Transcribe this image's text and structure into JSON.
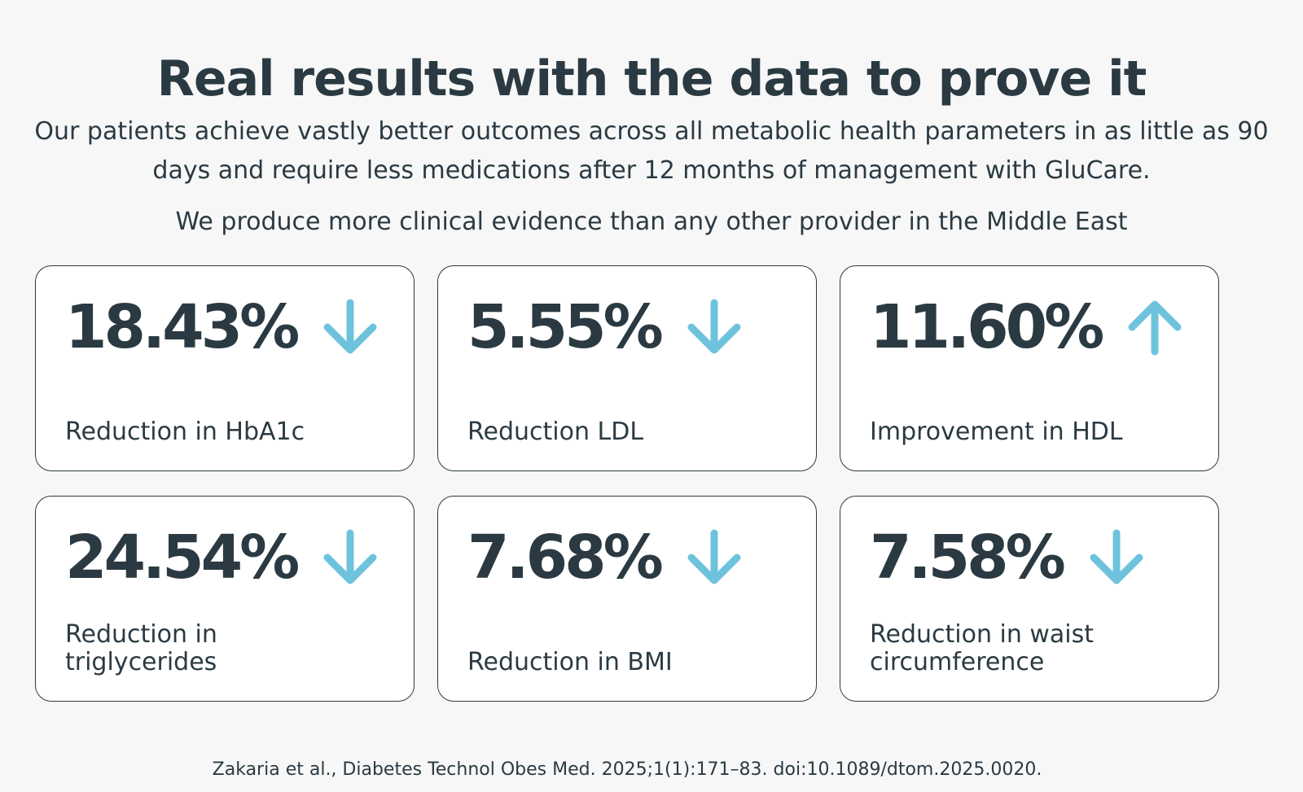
{
  "header": {
    "title": "Real results with the data to prove it",
    "subtitle": "Our patients achieve vastly better outcomes across all metabolic health parameters in as little as 90 days and require less medications after 12 months of management with GluCare.",
    "subtitle2": "We produce more clinical evidence than any other provider in the Middle East"
  },
  "stats": [
    {
      "value": "18.43%",
      "label": "Reduction in HbA1c",
      "direction": "down",
      "icon": "arrow-down-icon"
    },
    {
      "value": "5.55%",
      "label": "Reduction LDL",
      "direction": "down",
      "icon": "arrow-down-icon"
    },
    {
      "value": "11.60%",
      "label": "Improvement in HDL",
      "direction": "up",
      "icon": "arrow-up-icon"
    },
    {
      "value": "24.54%",
      "label": "Reduction in triglycerides",
      "direction": "down",
      "icon": "arrow-down-icon"
    },
    {
      "value": "7.68%",
      "label": "Reduction in BMI",
      "direction": "down",
      "icon": "arrow-down-icon"
    },
    {
      "value": "7.58%",
      "label": "Reduction in waist circumference",
      "direction": "down",
      "icon": "arrow-down-icon"
    }
  ],
  "citation": "Zakaria et al., Diabetes Technol Obes Med. 2025;1(1):171–83. doi:10.1089/dtom.2025.0020.",
  "colors": {
    "text": "#2b3a42",
    "accent": "#6ec3dc",
    "background": "#f7f7f7",
    "card_border": "#2b3a42"
  }
}
